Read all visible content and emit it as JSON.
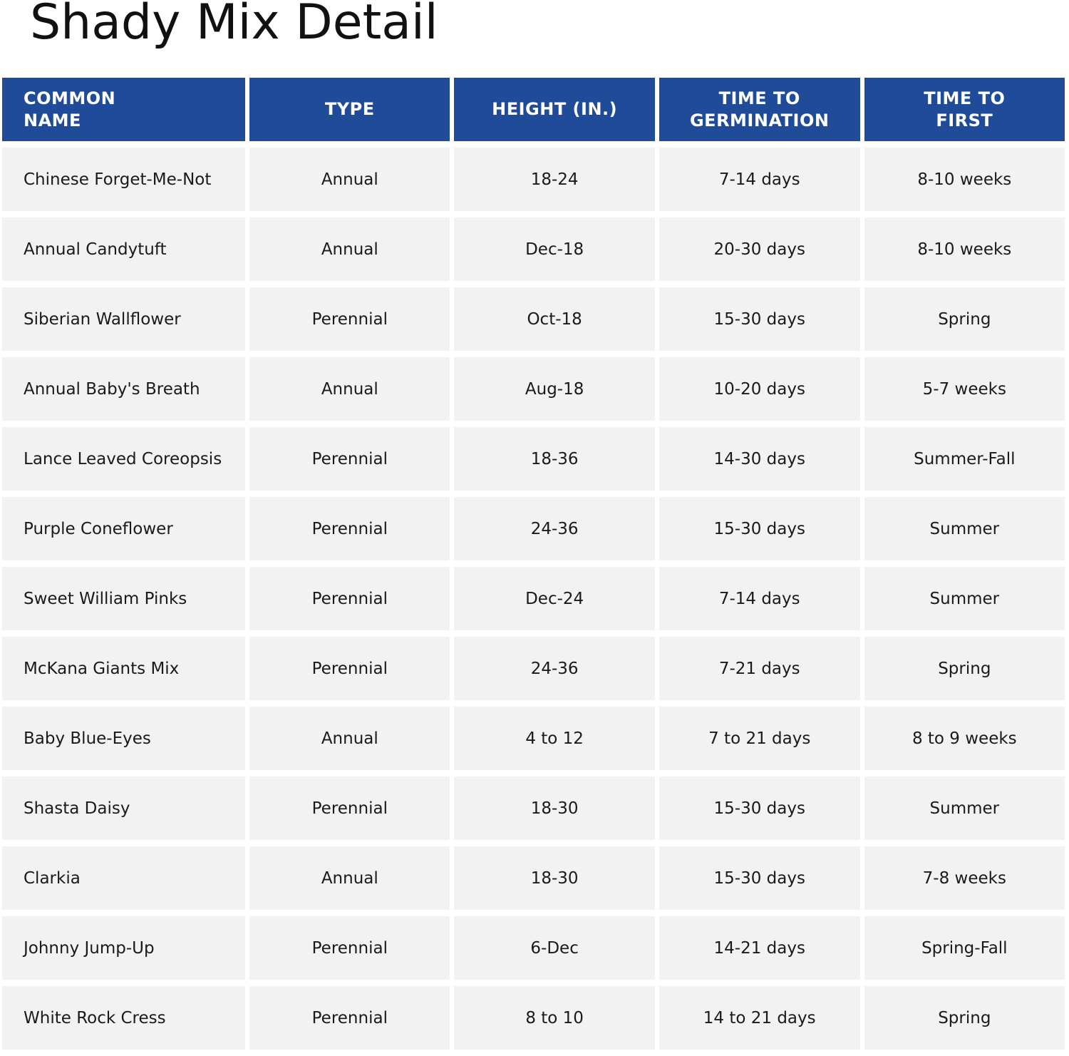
{
  "title": "Shady Mix Detail",
  "colors": {
    "header_bg": "#1f4b99",
    "cell_bg": "#f2f2f2"
  },
  "columns": [
    "COMMON NAME",
    "TYPE",
    "HEIGHT (IN.)",
    "TIME TO GERMINATION",
    "TIME TO FIRST"
  ],
  "rows": [
    [
      "Chinese Forget-Me-Not",
      "Annual",
      "18-24",
      "7-14 days",
      "8-10 weeks"
    ],
    [
      "Annual Candytuft",
      "Annual",
      "Dec-18",
      "20-30 days",
      "8-10 weeks"
    ],
    [
      "Siberian Wallflower",
      "Perennial",
      "Oct-18",
      "15-30 days",
      "Spring"
    ],
    [
      "Annual Baby's Breath",
      "Annual",
      "Aug-18",
      "10-20 days",
      "5-7 weeks"
    ],
    [
      "Lance Leaved Coreopsis",
      "Perennial",
      "18-36",
      "14-30 days",
      "Summer-Fall"
    ],
    [
      "Purple Coneflower",
      "Perennial",
      "24-36",
      "15-30 days",
      "Summer"
    ],
    [
      "Sweet William Pinks",
      "Perennial",
      "Dec-24",
      "7-14 days",
      "Summer"
    ],
    [
      "McKana Giants Mix",
      "Perennial",
      "24-36",
      "7-21 days",
      "Spring"
    ],
    [
      "Baby Blue-Eyes",
      "Annual",
      "4 to 12",
      "7 to 21 days",
      "8 to 9 weeks"
    ],
    [
      "Shasta Daisy",
      "Perennial",
      "18-30",
      "15-30 days",
      "Summer"
    ],
    [
      "Clarkia",
      "Annual",
      "18-30",
      "15-30 days",
      "7-8 weeks"
    ],
    [
      "Johnny Jump-Up",
      "Perennial",
      "6-Dec",
      "14-21 days",
      "Spring-Fall"
    ],
    [
      "White Rock Cress",
      "Perennial",
      "8 to 10",
      "14 to 21 days",
      "Spring"
    ]
  ]
}
